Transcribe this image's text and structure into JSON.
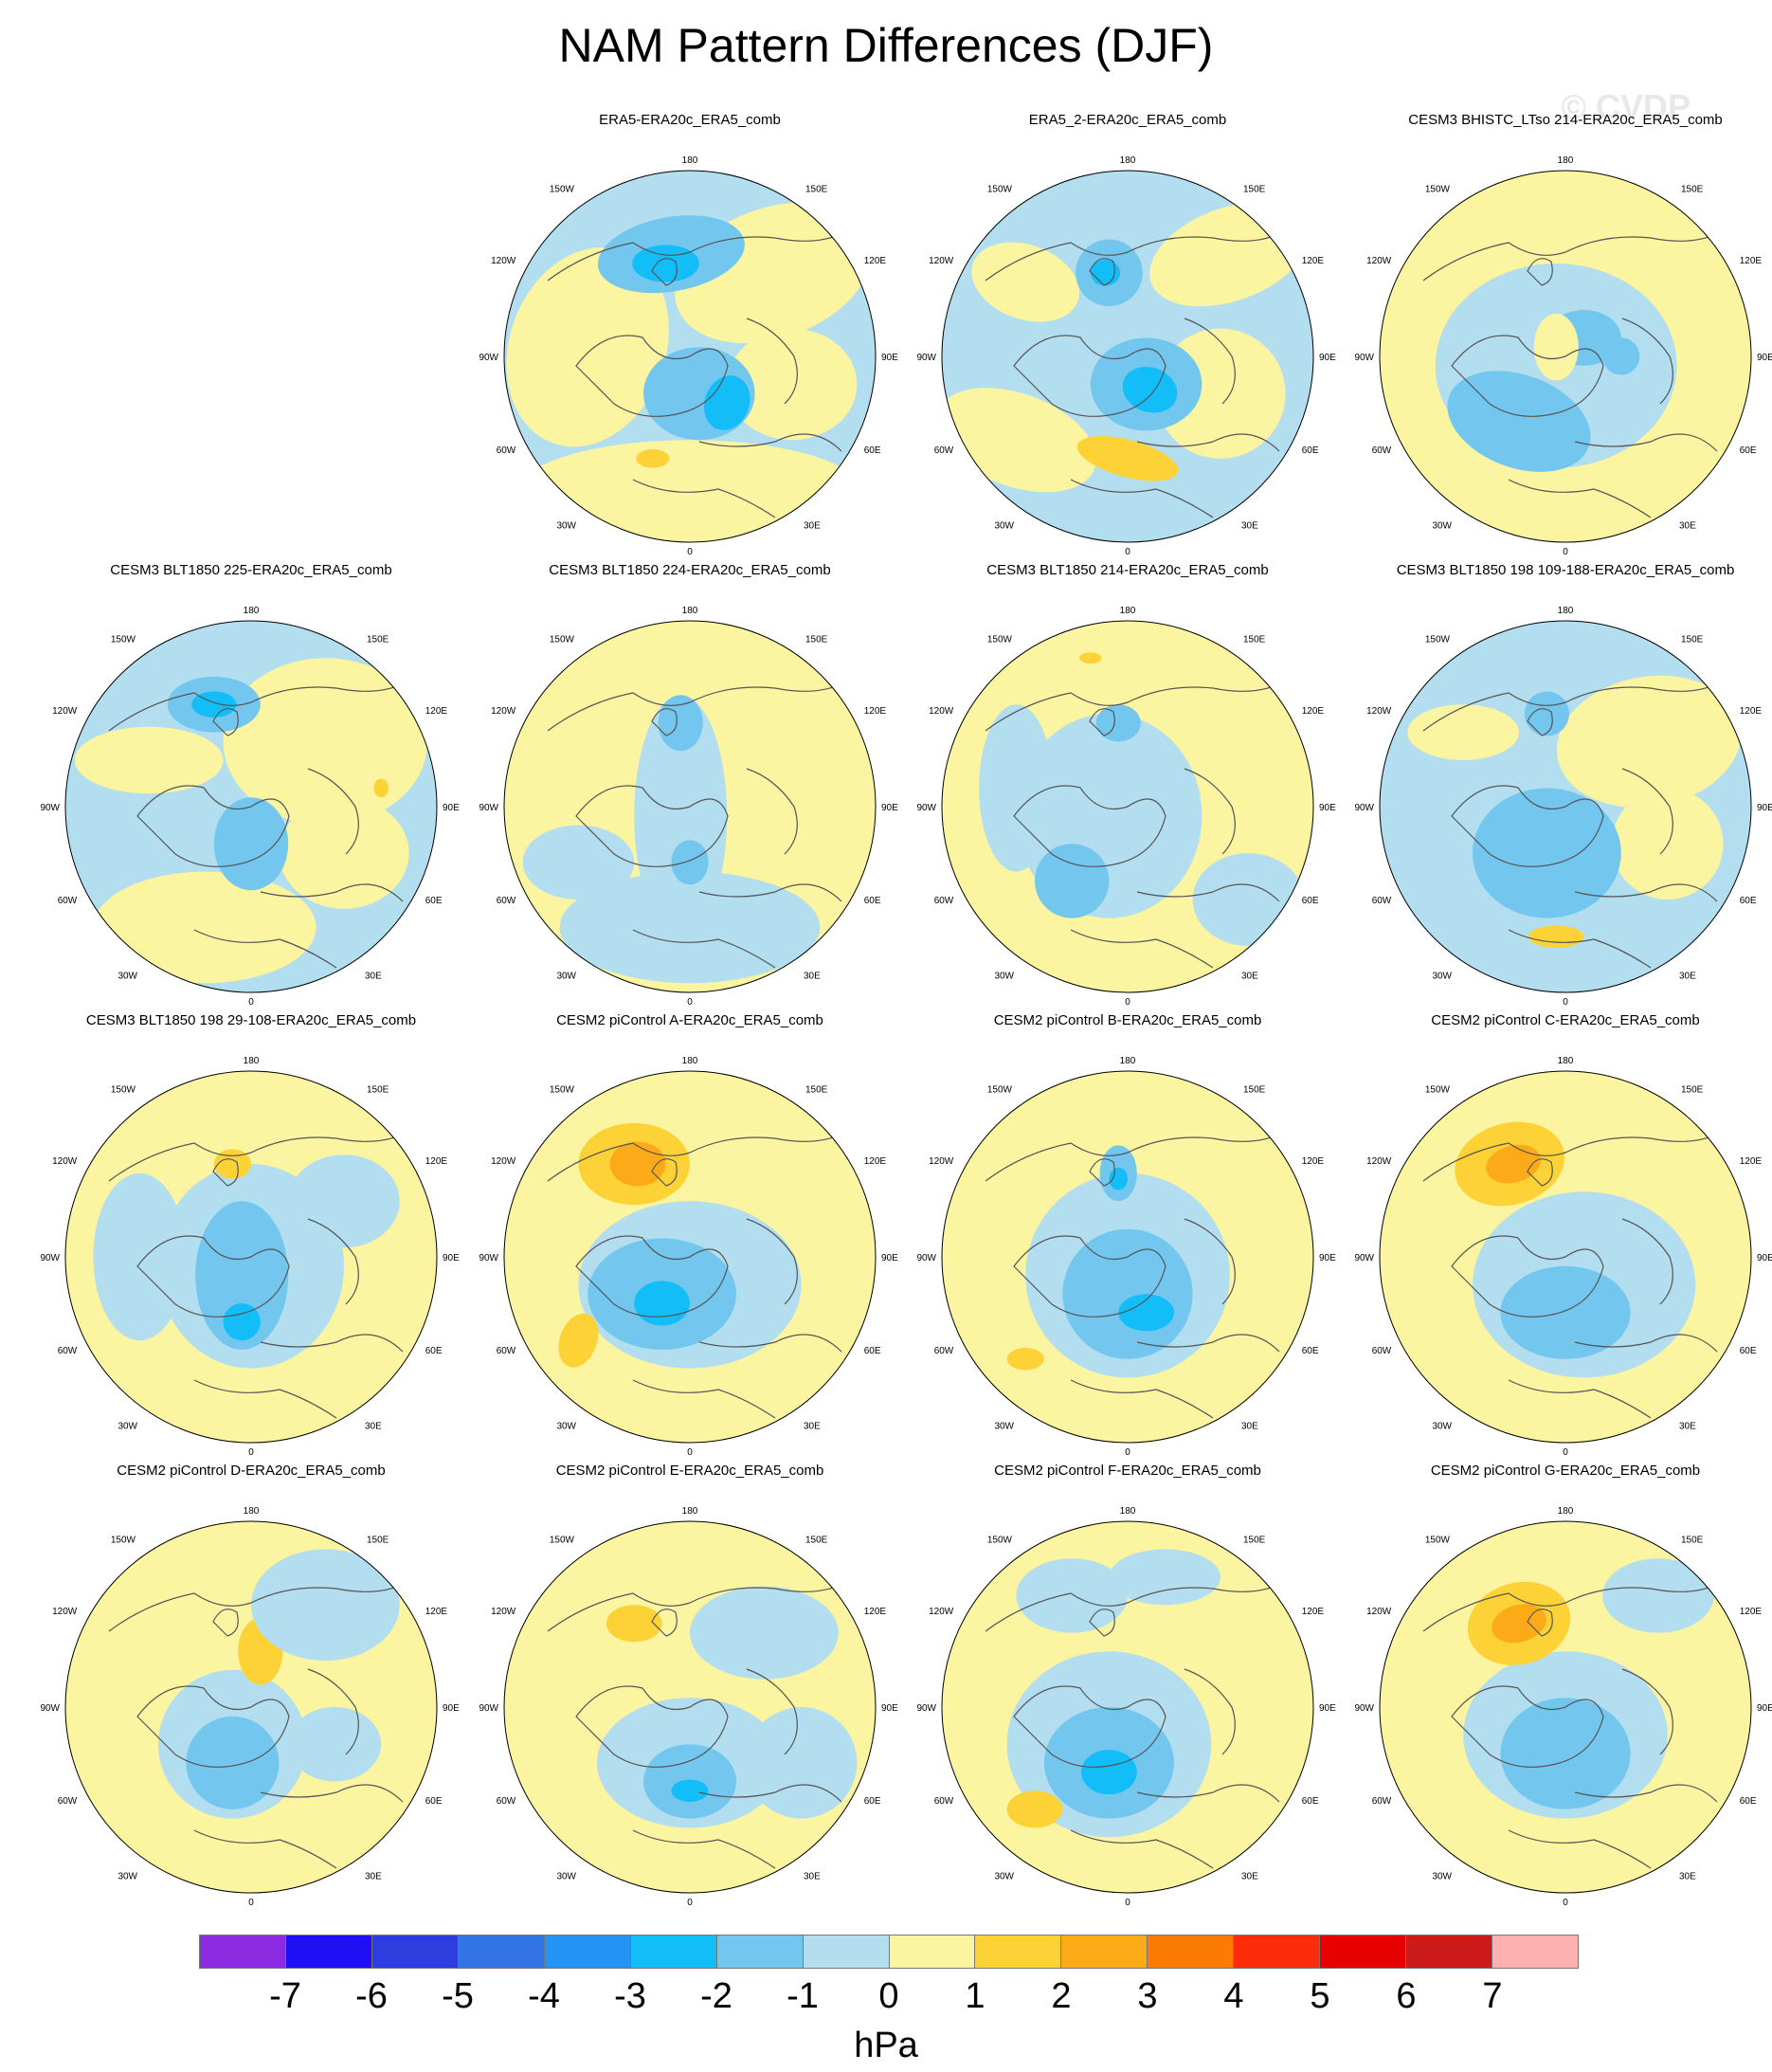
{
  "title": "NAM Pattern Differences (DJF)",
  "watermark": "© CVDP",
  "units": "hPa",
  "colorbar": {
    "levels": [
      "-7",
      "-6",
      "-5",
      "-4",
      "-3",
      "-2",
      "-1",
      "0",
      "1",
      "2",
      "3",
      "4",
      "5",
      "6",
      "7"
    ],
    "colors": [
      "#8b2be2",
      "#1e0ff5",
      "#2d3ddf",
      "#3273e6",
      "#2593f5",
      "#13bdf7",
      "#73c7ef",
      "#b3def0",
      "#fbf4a0",
      "#fcd236",
      "#fcaa17",
      "#fc7b05",
      "#fc2b0a",
      "#e60000",
      "#cc1a1a",
      "#fcb0b0"
    ]
  },
  "panels": [
    {
      "title": "ERA5-ERA20c_ERA5_comb",
      "pattern": "A"
    },
    {
      "title": "ERA5_2-ERA20c_ERA5_comb",
      "pattern": "B"
    },
    {
      "title": "CESM3 BHISTC_LTso 214-ERA20c_ERA5_comb",
      "pattern": "C"
    },
    {
      "title": "CESM3 BLT1850 225-ERA20c_ERA5_comb",
      "pattern": "D"
    },
    {
      "title": "CESM3 BLT1850 224-ERA20c_ERA5_comb",
      "pattern": "E"
    },
    {
      "title": "CESM3 BLT1850 214-ERA20c_ERA5_comb",
      "pattern": "F"
    },
    {
      "title": "CESM3 BLT1850 198 109-188-ERA20c_ERA5_comb",
      "pattern": "G"
    },
    {
      "title": "CESM3 BLT1850 198 29-108-ERA20c_ERA5_comb",
      "pattern": "H"
    },
    {
      "title": "CESM2 piControl A-ERA20c_ERA5_comb",
      "pattern": "I"
    },
    {
      "title": "CESM2 piControl B-ERA20c_ERA5_comb",
      "pattern": "J"
    },
    {
      "title": "CESM2 piControl C-ERA20c_ERA5_comb",
      "pattern": "K"
    },
    {
      "title": "CESM2 piControl D-ERA20c_ERA5_comb",
      "pattern": "L"
    },
    {
      "title": "CESM2 piControl E-ERA20c_ERA5_comb",
      "pattern": "M"
    },
    {
      "title": "CESM2 piControl F-ERA20c_ERA5_comb",
      "pattern": "N"
    },
    {
      "title": "CESM2 piControl G-ERA20c_ERA5_comb",
      "pattern": "O"
    }
  ],
  "lon_labels": {
    "top": "180",
    "bottom": "0",
    "upper_left": "150W",
    "upper_right": "150E",
    "mid_upper_left": "120W",
    "mid_upper_right": "120E",
    "left": "90W",
    "right": "90E",
    "mid_lower_left": "60W",
    "mid_lower_right": "60E",
    "lower_left": "30W",
    "lower_right": "30E"
  }
}
